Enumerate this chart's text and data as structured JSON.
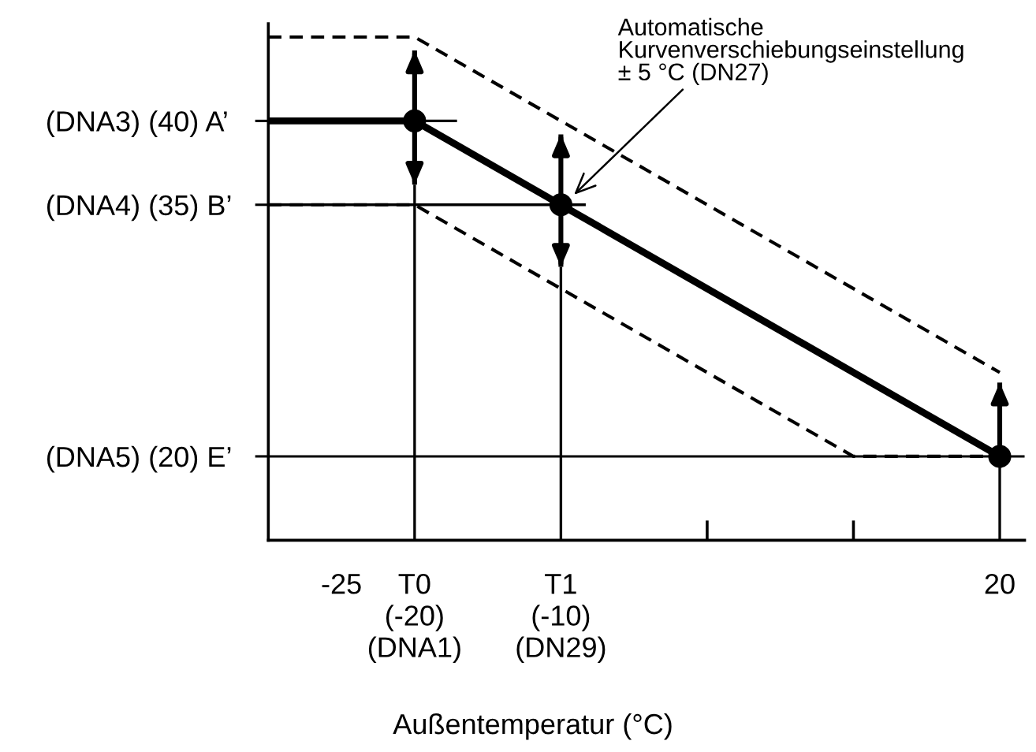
{
  "chart_data": {
    "type": "line",
    "xlabel": "Außentemperatur (°C)",
    "xlim": [
      -30,
      21.7
    ],
    "ylim": [
      15,
      45.8
    ],
    "xticks": [
      -25,
      {
        "value": -20,
        "label": "T0\n(-20)\n(DNA1)"
      },
      {
        "value": -10,
        "label": "T1\n(-10)\n(DN29)"
      },
      {
        "value": 0,
        "label": null
      },
      {
        "value": 10,
        "label": null
      },
      20
    ],
    "yticks": [
      40,
      35,
      20
    ],
    "grid": false,
    "legend": false,
    "series": [
      {
        "type": "line",
        "color": "#000000",
        "line_style": "solid",
        "x": [
          -30,
          -20,
          -10,
          20
        ],
        "values": [
          40,
          40,
          35,
          20
        ]
      },
      {
        "type": "line",
        "color": "#000000",
        "line_style": "dashed",
        "x": [
          -30,
          -20,
          20
        ],
        "values": [
          45,
          45,
          25
        ]
      },
      {
        "type": "line",
        "color": "#000000",
        "line_style": "dashed",
        "x": [
          -30,
          -20,
          10,
          20
        ],
        "values": [
          35,
          35,
          20,
          20
        ]
      },
      {
        "type": "line",
        "color": "#000000",
        "line_style": "solid",
        "x": [
          -30,
          -17.1
        ],
        "values": [
          40,
          40
        ]
      },
      {
        "type": "line",
        "color": "#000000",
        "line_style": "solid",
        "x": [
          -30,
          -8.3
        ],
        "values": [
          35,
          35
        ]
      },
      {
        "type": "line",
        "color": "#000000",
        "line_style": "solid",
        "x": [
          -20,
          -20
        ],
        "values": [
          15,
          36.2
        ]
      },
      {
        "type": "line",
        "color": "#000000",
        "line_style": "solid",
        "x": [
          -10,
          -10
        ],
        "values": [
          15,
          31.3
        ]
      },
      {
        "type": "line",
        "color": "#000000",
        "line_style": "solid",
        "x": [
          20,
          20
        ],
        "values": [
          15,
          20
        ]
      },
      {
        "type": "scatter",
        "color": "#000000",
        "marker": "circle",
        "x": [
          -20,
          -10,
          20
        ],
        "values": [
          40,
          35,
          20
        ],
        "errors": [
          [
            36.2,
            44.2
          ],
          [
            31.3,
            39.2
          ],
          [
            20,
            24.4
          ]
        ]
      }
    ],
    "ref_lines": [
      {
        "axis": "y",
        "value": 20,
        "color": "#000000"
      }
    ],
    "annotations": [
      {
        "text": "Automatische\nKurvenverschiebungseinstellung\n± 5 °C (DN27)",
        "x": -9.1,
        "y": 35.6
      },
      "(DNA3) (",
      ") A’",
      "(DNA4) (",
      ") B’",
      "(DNA5) (",
      ") E’"
    ]
  }
}
